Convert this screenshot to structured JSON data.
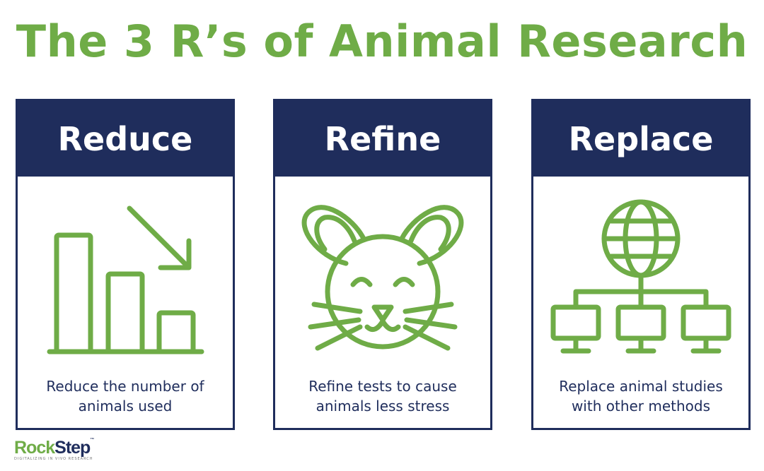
{
  "title": "The 3 R’s of Animal Research",
  "colors": {
    "accent": "#6fac47",
    "navy": "#1f2d5c"
  },
  "cards": [
    {
      "heading": "Reduce",
      "line1": "Reduce the number of",
      "line2": "animals used",
      "icon": "bar-chart-decreasing-icon"
    },
    {
      "heading": "Refine",
      "line1": "Refine tests to cause",
      "line2": "animals less stress",
      "icon": "mouse-face-icon"
    },
    {
      "heading": "Replace",
      "line1": "Replace animal studies",
      "line2": "with other methods",
      "icon": "network-computers-icon"
    }
  ],
  "logo": {
    "part1": "Rock",
    "part2": "Step",
    "tm": "™",
    "tagline": "DIGITALIZING IN VIVO RESEARCH"
  }
}
